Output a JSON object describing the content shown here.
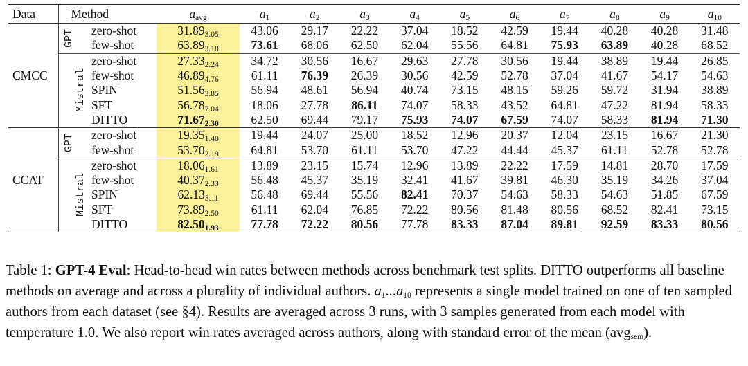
{
  "table": {
    "headers": {
      "data": "Data",
      "method": "Method",
      "avg": {
        "base": "a",
        "sub": "avg"
      },
      "authors": [
        {
          "base": "a",
          "sub": "1"
        },
        {
          "base": "a",
          "sub": "2"
        },
        {
          "base": "a",
          "sub": "3"
        },
        {
          "base": "a",
          "sub": "4"
        },
        {
          "base": "a",
          "sub": "5"
        },
        {
          "base": "a",
          "sub": "6"
        },
        {
          "base": "a",
          "sub": "7"
        },
        {
          "base": "a",
          "sub": "8"
        },
        {
          "base": "a",
          "sub": "9"
        },
        {
          "base": "a",
          "sub": "10"
        }
      ]
    },
    "datasets": [
      {
        "name": "CMCC",
        "groups": [
          {
            "name": "GPT",
            "rows": [
              {
                "method": "zero-shot",
                "avg": "31.89",
                "sem": "3.05",
                "avg_bold": false,
                "values": [
                  "43.06",
                  "29.17",
                  "22.22",
                  "37.04",
                  "18.52",
                  "42.59",
                  "19.44",
                  "40.28",
                  "40.28",
                  "31.48"
                ],
                "bold": [
                  false,
                  false,
                  false,
                  false,
                  false,
                  false,
                  false,
                  false,
                  false,
                  false
                ]
              },
              {
                "method": "few-shot",
                "avg": "63.89",
                "sem": "3.18",
                "avg_bold": false,
                "values": [
                  "73.61",
                  "68.06",
                  "62.50",
                  "62.04",
                  "55.56",
                  "64.81",
                  "75.93",
                  "63.89",
                  "40.28",
                  "68.52"
                ],
                "bold": [
                  true,
                  false,
                  false,
                  false,
                  false,
                  false,
                  true,
                  true,
                  false,
                  false
                ]
              }
            ]
          },
          {
            "name": "Mistral",
            "rows": [
              {
                "method": "zero-shot",
                "avg": "27.33",
                "sem": "2.24",
                "avg_bold": false,
                "values": [
                  "34.72",
                  "30.56",
                  "16.67",
                  "29.63",
                  "27.78",
                  "30.56",
                  "19.44",
                  "38.89",
                  "19.44",
                  "26.85"
                ],
                "bold": [
                  false,
                  false,
                  false,
                  false,
                  false,
                  false,
                  false,
                  false,
                  false,
                  false
                ]
              },
              {
                "method": "few-shot",
                "avg": "46.89",
                "sem": "4.76",
                "avg_bold": false,
                "values": [
                  "61.11",
                  "76.39",
                  "26.39",
                  "30.56",
                  "42.59",
                  "52.78",
                  "37.04",
                  "41.67",
                  "54.17",
                  "54.63"
                ],
                "bold": [
                  false,
                  true,
                  false,
                  false,
                  false,
                  false,
                  false,
                  false,
                  false,
                  false
                ]
              },
              {
                "method": "SPIN",
                "avg": "51.56",
                "sem": "3.85",
                "avg_bold": false,
                "values": [
                  "56.94",
                  "48.61",
                  "56.94",
                  "40.74",
                  "73.15",
                  "48.15",
                  "59.26",
                  "59.72",
                  "31.94",
                  "38.89"
                ],
                "bold": [
                  false,
                  false,
                  false,
                  false,
                  false,
                  false,
                  false,
                  false,
                  false,
                  false
                ]
              },
              {
                "method": "SFT",
                "avg": "56.78",
                "sem": "7.04",
                "avg_bold": false,
                "values": [
                  "18.06",
                  "27.78",
                  "86.11",
                  "74.07",
                  "58.33",
                  "43.52",
                  "64.81",
                  "47.22",
                  "81.94",
                  "58.33"
                ],
                "bold": [
                  false,
                  false,
                  true,
                  false,
                  false,
                  false,
                  false,
                  false,
                  false,
                  false
                ]
              },
              {
                "method": "DITTO",
                "avg": "71.67",
                "sem": "2.30",
                "avg_bold": true,
                "values": [
                  "62.50",
                  "69.44",
                  "79.17",
                  "75.93",
                  "74.07",
                  "67.59",
                  "74.07",
                  "58.33",
                  "81.94",
                  "71.30"
                ],
                "bold": [
                  false,
                  false,
                  false,
                  true,
                  true,
                  true,
                  false,
                  false,
                  true,
                  true
                ]
              }
            ]
          }
        ]
      },
      {
        "name": "CCAT",
        "groups": [
          {
            "name": "GPT",
            "rows": [
              {
                "method": "zero-shot",
                "avg": "19.35",
                "sem": "1.40",
                "avg_bold": false,
                "values": [
                  "19.44",
                  "24.07",
                  "25.00",
                  "18.52",
                  "12.96",
                  "20.37",
                  "12.04",
                  "23.15",
                  "16.67",
                  "21.30"
                ],
                "bold": [
                  false,
                  false,
                  false,
                  false,
                  false,
                  false,
                  false,
                  false,
                  false,
                  false
                ]
              },
              {
                "method": "few-shot",
                "avg": "53.70",
                "sem": "2.19",
                "avg_bold": false,
                "values": [
                  "64.81",
                  "53.70",
                  "61.11",
                  "53.70",
                  "47.22",
                  "44.44",
                  "45.37",
                  "61.11",
                  "52.78",
                  "52.78"
                ],
                "bold": [
                  false,
                  false,
                  false,
                  false,
                  false,
                  false,
                  false,
                  false,
                  false,
                  false
                ]
              }
            ]
          },
          {
            "name": "Mistral",
            "rows": [
              {
                "method": "zero-shot",
                "avg": "18.06",
                "sem": "1.61",
                "avg_bold": false,
                "values": [
                  "13.89",
                  "23.15",
                  "15.74",
                  "12.96",
                  "13.89",
                  "22.22",
                  "17.59",
                  "14.81",
                  "28.70",
                  "17.59"
                ],
                "bold": [
                  false,
                  false,
                  false,
                  false,
                  false,
                  false,
                  false,
                  false,
                  false,
                  false
                ]
              },
              {
                "method": "few-shot",
                "avg": "40.37",
                "sem": "2.33",
                "avg_bold": false,
                "values": [
                  "56.48",
                  "45.37",
                  "35.19",
                  "32.41",
                  "41.67",
                  "39.81",
                  "46.30",
                  "35.19",
                  "34.26",
                  "37.04"
                ],
                "bold": [
                  false,
                  false,
                  false,
                  false,
                  false,
                  false,
                  false,
                  false,
                  false,
                  false
                ]
              },
              {
                "method": "SPIN",
                "avg": "62.13",
                "sem": "3.11",
                "avg_bold": false,
                "values": [
                  "56.48",
                  "69.44",
                  "55.56",
                  "82.41",
                  "70.37",
                  "54.63",
                  "58.33",
                  "54.63",
                  "51.85",
                  "67.59"
                ],
                "bold": [
                  false,
                  false,
                  false,
                  true,
                  false,
                  false,
                  false,
                  false,
                  false,
                  false
                ]
              },
              {
                "method": "SFT",
                "avg": "73.89",
                "sem": "2.50",
                "avg_bold": false,
                "values": [
                  "61.11",
                  "62.04",
                  "76.85",
                  "72.22",
                  "80.56",
                  "81.48",
                  "80.56",
                  "68.52",
                  "82.41",
                  "73.15"
                ],
                "bold": [
                  false,
                  false,
                  false,
                  false,
                  false,
                  false,
                  false,
                  false,
                  false,
                  false
                ]
              },
              {
                "method": "DITTO",
                "avg": "82.50",
                "sem": "1.93",
                "avg_bold": true,
                "values": [
                  "77.78",
                  "72.22",
                  "80.56",
                  "77.78",
                  "83.33",
                  "87.04",
                  "89.81",
                  "92.59",
                  "83.33",
                  "80.56"
                ],
                "bold": [
                  true,
                  true,
                  true,
                  false,
                  true,
                  true,
                  true,
                  true,
                  true,
                  true
                ]
              }
            ]
          }
        ]
      }
    ],
    "highlight_color": "#faf19a"
  },
  "caption": {
    "label": "Table 1: ",
    "bold_title": "GPT-4 Eval",
    "text1": ": Head-to-head win rates between methods across benchmark test splits. DITTO outperforms all baseline methods on average and across a plurality of individual authors. ",
    "a1": "a",
    "a1_sub": "1",
    "ellipsis": "...",
    "a10": "a",
    "a10_sub": "10",
    "text2": " represents a single model trained on one of ten sampled authors from each dataset (see §4). Results are averaged across 3 runs, with 3 samples generated from each model with temperature 1.0. We also report win rates averaged across authors, along with standard error of the mean (",
    "avg_base": "avg",
    "avg_sub": "sem",
    "text3": ")."
  }
}
